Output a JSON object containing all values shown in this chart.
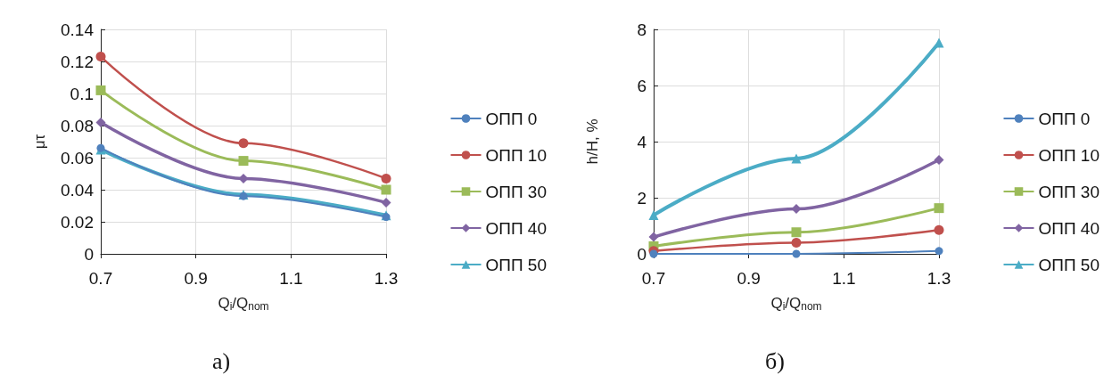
{
  "chart_data": [
    {
      "type": "line",
      "xlabel": "Q$_{i}$/Q$_{nom}$",
      "ylabel": "μτ",
      "x": [
        0.7,
        1.0,
        1.3
      ],
      "xlim": [
        0.7,
        1.3
      ],
      "xticks": [
        0.7,
        0.9,
        1.1,
        1.3
      ],
      "ylim": [
        0,
        0.14
      ],
      "yticks": [
        0,
        0.02,
        0.04,
        0.06,
        0.08,
        0.1,
        0.12,
        0.14
      ],
      "grid": true,
      "legend": "right",
      "annotations": [
        "а)"
      ],
      "series": [
        {
          "name": "ОПП 0",
          "color": "#4f81bd",
          "marker": "circle",
          "values": [
            0.066,
            0.036,
            0.023
          ]
        },
        {
          "name": "ОПП 10",
          "color": "#c0504d",
          "marker": "circle",
          "values": [
            0.123,
            0.069,
            0.047
          ]
        },
        {
          "name": "ОПП 30",
          "color": "#9bbb59",
          "marker": "square",
          "values": [
            0.102,
            0.058,
            0.04
          ]
        },
        {
          "name": "ОПП 40",
          "color": "#8064a2",
          "marker": "diamond",
          "values": [
            0.082,
            0.047,
            0.032
          ]
        },
        {
          "name": "ОПП 50",
          "color": "#4bacc6",
          "marker": "triangle",
          "values": [
            0.065,
            0.037,
            0.024
          ]
        }
      ]
    },
    {
      "type": "line",
      "xlabel": "Q$_{i}$/Q$_{nom}$",
      "ylabel": "h/H, %",
      "x": [
        0.7,
        1.0,
        1.3
      ],
      "xlim": [
        0.7,
        1.3
      ],
      "xticks": [
        0.7,
        0.9,
        1.1,
        1.3
      ],
      "ylim": [
        0,
        8
      ],
      "yticks": [
        0,
        2,
        4,
        6,
        8
      ],
      "grid": true,
      "legend": "right",
      "annotations": [
        "б)"
      ],
      "series": [
        {
          "name": "ОПП 0",
          "color": "#4f81bd",
          "marker": "circle",
          "values": [
            0,
            0,
            0.1
          ]
        },
        {
          "name": "ОПП 10",
          "color": "#c0504d",
          "marker": "circle",
          "values": [
            0.1,
            0.4,
            0.85
          ]
        },
        {
          "name": "ОПП 30",
          "color": "#9bbb59",
          "marker": "square",
          "values": [
            0.27,
            0.77,
            1.63
          ]
        },
        {
          "name": "ОПП 40",
          "color": "#8064a2",
          "marker": "diamond",
          "values": [
            0.6,
            1.6,
            3.35
          ]
        },
        {
          "name": "ОПП 50",
          "color": "#4bacc6",
          "marker": "triangle",
          "values": [
            1.38,
            3.4,
            7.52
          ]
        }
      ]
    }
  ]
}
